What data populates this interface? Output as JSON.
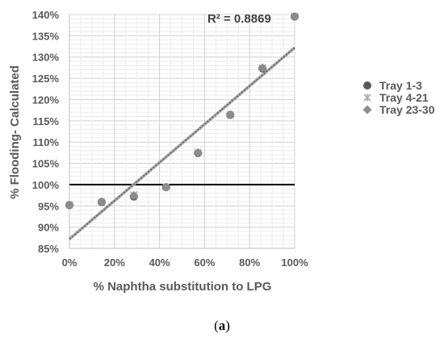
{
  "chart_data": {
    "type": "scatter",
    "xlabel": "% Naphtha substitution to LPG",
    "ylabel": "% Flooding- Calculated",
    "xlim": [
      0,
      100
    ],
    "ylim": [
      85,
      140
    ],
    "x_ticks": [
      "0%",
      "20%",
      "40%",
      "60%",
      "80%",
      "100%"
    ],
    "y_ticks": [
      "85%",
      "90%",
      "95%",
      "100%",
      "105%",
      "110%",
      "115%",
      "120%",
      "125%",
      "130%",
      "135%",
      "140%"
    ],
    "grid": true,
    "legend_position": "right",
    "series": [
      {
        "name": "Tray 1-3",
        "marker": "circle",
        "color": "#595959",
        "x": [
          0,
          14.3,
          28.6,
          42.9,
          57.1,
          71.4,
          85.7,
          100
        ],
        "y": [
          95.2,
          95.9,
          97.2,
          99.4,
          107.4,
          116.4,
          127.3,
          139.5
        ]
      },
      {
        "name": "Tray 4-21",
        "marker": "star",
        "color": "#a6a6a6",
        "x": [
          0,
          14.3,
          28.6,
          42.9,
          57.1,
          71.4,
          85.7,
          100
        ],
        "y": [
          95.2,
          95.9,
          97.6,
          99.4,
          107.6,
          116.4,
          127.5,
          139.6
        ]
      },
      {
        "name": "Tray 23-30",
        "marker": "diamond",
        "color": "#8c8c8c",
        "x": [
          0,
          14.3,
          28.6,
          42.9,
          57.1,
          71.4,
          85.7,
          100
        ],
        "y": [
          95.2,
          95.9,
          97.4,
          99.4,
          107.5,
          116.4,
          127.4,
          139.5
        ]
      }
    ],
    "trendline": {
      "type": "linear",
      "start": [
        0,
        87.2
      ],
      "end": [
        100,
        132.2
      ],
      "r2_label": "R² = 0.8869"
    },
    "reference_line": {
      "y": 100
    }
  },
  "caption": {
    "open": "(",
    "letter": "a",
    "close": ")"
  }
}
